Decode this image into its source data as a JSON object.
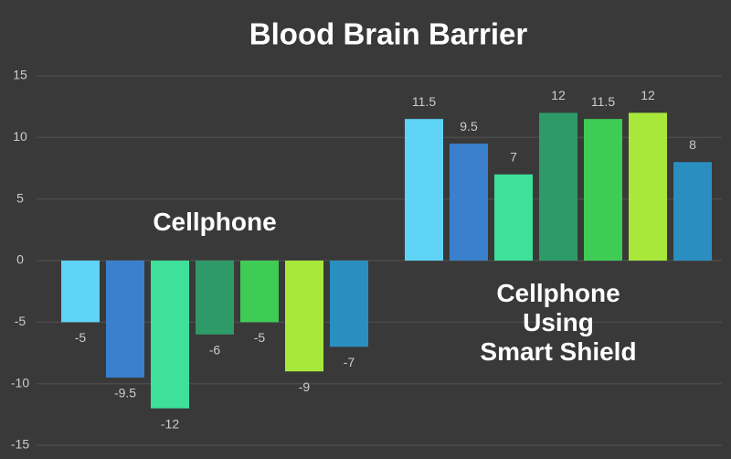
{
  "chart_data": {
    "type": "bar",
    "title": "Blood Brain Barrier",
    "categories": [
      "Cellphone",
      "Cellphone\nUsing\nSmart Shield"
    ],
    "series": [
      {
        "color": "#5fd3f5",
        "values": [
          -5,
          11.5
        ]
      },
      {
        "color": "#3a80cc",
        "values": [
          -9.5,
          9.5
        ]
      },
      {
        "color": "#3ee09a",
        "values": [
          -12,
          7
        ]
      },
      {
        "color": "#2e9a68",
        "values": [
          -6,
          12
        ]
      },
      {
        "color": "#3fcc55",
        "values": [
          -5,
          11.5
        ]
      },
      {
        "color": "#a8e83a",
        "values": [
          -9,
          12
        ]
      },
      {
        "color": "#2a8fc0",
        "values": [
          -7,
          8
        ]
      }
    ],
    "ylim": [
      -15,
      15
    ],
    "yticks": [
      -15,
      -10,
      -5,
      0,
      5,
      10,
      15
    ],
    "grid": true
  }
}
